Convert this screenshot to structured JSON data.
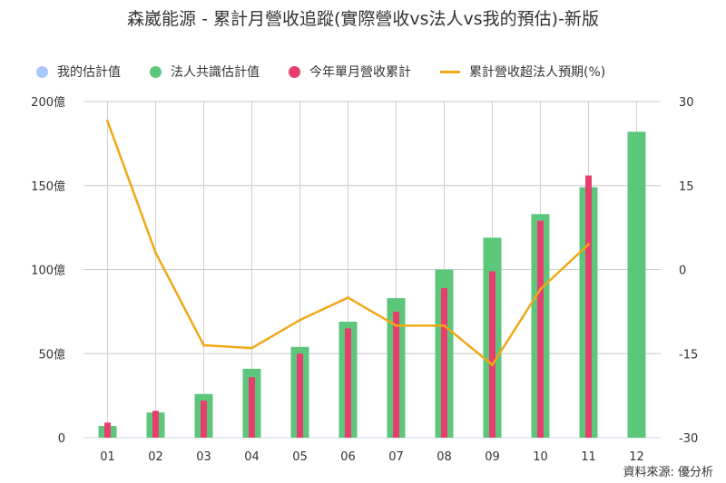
{
  "title": "森崴能源 - 累計月營收追蹤(實際營收vs法人vs我的預估)-新版",
  "source": "資料來源: 優分析",
  "legend": [
    {
      "label": "我的估計值",
      "type": "dot",
      "color": "#a8c8f8"
    },
    {
      "label": "法人共識估計值",
      "type": "dot",
      "color": "#5cc77a"
    },
    {
      "label": "今年單月營收累計",
      "type": "dot",
      "color": "#e83d6f"
    },
    {
      "label": "累計營收超法人預期(%)",
      "type": "line",
      "color": "#f0a818"
    }
  ],
  "chart_data": {
    "type": "bar",
    "title": "森崴能源 - 累計月營收追蹤(實際營收vs法人vs我的預估)-新版",
    "categories": [
      "01",
      "02",
      "03",
      "04",
      "05",
      "06",
      "07",
      "08",
      "09",
      "10",
      "11",
      "12"
    ],
    "left_axis": {
      "ticks": [
        "0",
        "50億",
        "100億",
        "150億",
        "200億"
      ],
      "range": [
        0,
        200
      ]
    },
    "right_axis": {
      "ticks": [
        "-30",
        "-15",
        "0",
        "15",
        "30"
      ],
      "range": [
        -30,
        30
      ]
    },
    "series": [
      {
        "name": "法人共識估計值",
        "type": "bar",
        "axis": "left",
        "color": "#5cc77a",
        "values": [
          7,
          15,
          26,
          41,
          54,
          69,
          83,
          100,
          119,
          133,
          149,
          182
        ]
      },
      {
        "name": "今年單月營收累計",
        "type": "bar",
        "axis": "left",
        "color": "#e83d6f",
        "values": [
          9,
          16,
          22,
          36,
          50,
          65,
          75,
          89,
          99,
          129,
          156,
          null
        ]
      },
      {
        "name": "累計營收超法人預期(%)",
        "type": "line",
        "axis": "right",
        "color": "#f0a818",
        "values": [
          26.5,
          3,
          -13.5,
          -14,
          -9,
          -5,
          -10,
          -10,
          -17,
          -3.5,
          4.5,
          null
        ]
      }
    ],
    "grid": true,
    "legend_position": "top"
  }
}
